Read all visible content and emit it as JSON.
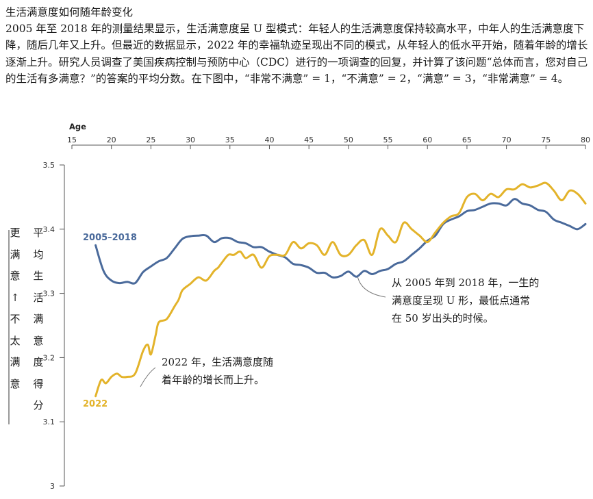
{
  "header": {
    "title": "生活满意度如何随年龄变化",
    "description": "2005 年至 2018 年的测量结果显示，生活满意度呈 U 型模式：年轻人的生活满意度保持较高水平，中年人的生活满意度下降，随后几年又上升。但最近的数据显示，2022 年的幸福轨迹呈现出不同的模式，从年轻人的低水平开始，随着年龄的增长逐渐上升。研究人员调查了美国疾病控制与预防中心（CDC）进行的一项调查的回复，并计算了该问题“总体而言，您对自己的生活有多满意？”的答案的平均分数。在下图中，“非常不满意” = 1，“不满意” = 2，“满意” = 3，“非常满意” = 4。"
  },
  "colors": {
    "series_2005_2018": "#4a6a9b",
    "series_2022": "#e3b32a",
    "axis": "#555555",
    "leader": "#777777"
  },
  "annotations": {
    "u_shape": [
      "从 2005 年到 2018 年，一生的",
      "满意度呈现 U 形，最低点通常",
      "在 50 岁出头的时候。"
    ],
    "rise_2022": [
      "2022 年，生活满意度随",
      "着年龄的增长而上升。"
    ]
  },
  "side_labels": {
    "more_less": [
      "更",
      "满",
      "意",
      "↑",
      "不",
      "太",
      "满",
      "意"
    ],
    "avg_score": [
      "平",
      "均",
      "生",
      "活",
      "满",
      "意",
      "度",
      "得",
      "分"
    ]
  },
  "chart_data": {
    "type": "line",
    "xlabel": "Age",
    "ylabel": "平均生活满意度得分",
    "xlim": [
      15,
      80
    ],
    "ylim": [
      3.0,
      3.5
    ],
    "x_ticks": [
      "15",
      "20",
      "25",
      "30",
      "35",
      "40",
      "45",
      "50",
      "55",
      "60",
      "65",
      "70",
      "75",
      "80"
    ],
    "y_ticks": [
      "3.5",
      "3.4",
      "3.3",
      "3.2",
      "3.1",
      "3"
    ],
    "grid": false,
    "series": [
      {
        "name": "2005–2018",
        "x": [
          18,
          19,
          20,
          21,
          22,
          23,
          24,
          25,
          26,
          27,
          28,
          29,
          30,
          31,
          32,
          33,
          34,
          35,
          36,
          37,
          38,
          39,
          40,
          41,
          42,
          43,
          44,
          45,
          46,
          47,
          48,
          49,
          50,
          51,
          52,
          53,
          54,
          55,
          56,
          57,
          58,
          59,
          60,
          61,
          62,
          63,
          64,
          65,
          66,
          67,
          68,
          69,
          70,
          71,
          72,
          73,
          74,
          75,
          76,
          77,
          78,
          79,
          80
        ],
        "values": [
          3.375,
          3.335,
          3.32,
          3.316,
          3.318,
          3.316,
          3.333,
          3.342,
          3.35,
          3.355,
          3.37,
          3.385,
          3.389,
          3.39,
          3.39,
          3.38,
          3.386,
          3.386,
          3.38,
          3.378,
          3.372,
          3.372,
          3.365,
          3.36,
          3.356,
          3.346,
          3.344,
          3.34,
          3.332,
          3.332,
          3.325,
          3.327,
          3.334,
          3.326,
          3.335,
          3.33,
          3.335,
          3.338,
          3.346,
          3.35,
          3.36,
          3.37,
          3.382,
          3.39,
          3.408,
          3.415,
          3.42,
          3.428,
          3.43,
          3.435,
          3.44,
          3.44,
          3.437,
          3.447,
          3.44,
          3.437,
          3.43,
          3.427,
          3.415,
          3.41,
          3.405,
          3.4,
          3.408
        ]
      },
      {
        "name": "2022",
        "x": [
          18,
          18.7,
          19.3,
          20,
          20.7,
          21.3,
          22,
          23,
          24,
          24.6,
          25,
          25.6,
          26,
          27,
          28,
          28.5,
          29,
          30,
          31,
          32,
          33,
          33.5,
          34,
          34.8,
          35.5,
          36.3,
          37,
          38,
          39,
          40,
          41,
          42,
          43,
          44,
          45,
          46,
          47,
          48,
          49,
          50,
          51,
          52,
          53,
          54,
          55,
          56,
          57,
          58,
          59,
          60,
          61,
          62,
          63,
          64,
          65,
          66,
          67,
          68,
          69,
          70,
          71,
          72,
          73,
          74,
          75,
          76,
          77,
          78,
          79,
          80
        ],
        "values": [
          3.14,
          3.165,
          3.16,
          3.17,
          3.175,
          3.17,
          3.17,
          3.175,
          3.21,
          3.22,
          3.205,
          3.235,
          3.255,
          3.26,
          3.28,
          3.29,
          3.305,
          3.315,
          3.325,
          3.32,
          3.335,
          3.34,
          3.348,
          3.36,
          3.36,
          3.365,
          3.355,
          3.36,
          3.34,
          3.358,
          3.36,
          3.36,
          3.38,
          3.37,
          3.378,
          3.375,
          3.36,
          3.38,
          3.36,
          3.36,
          3.375,
          3.383,
          3.36,
          3.4,
          3.39,
          3.38,
          3.41,
          3.4,
          3.39,
          3.38,
          3.395,
          3.41,
          3.42,
          3.425,
          3.45,
          3.455,
          3.445,
          3.455,
          3.45,
          3.462,
          3.462,
          3.47,
          3.465,
          3.468,
          3.472,
          3.46,
          3.445,
          3.46,
          3.455,
          3.44
        ]
      }
    ]
  }
}
